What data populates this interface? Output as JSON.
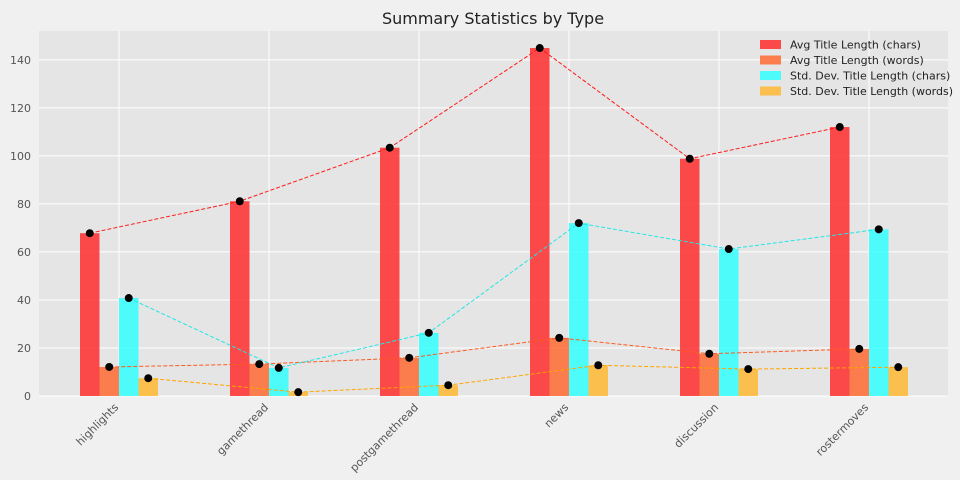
{
  "chart_data": {
    "type": "bar",
    "title": "Summary Statistics by Type",
    "xlabel": "",
    "ylabel": "",
    "categories": [
      "highlights",
      "gamethread",
      "postgamethread",
      "news",
      "discussion",
      "rostermoves"
    ],
    "ylim": [
      0,
      152
    ],
    "yticks": [
      0,
      20,
      40,
      60,
      80,
      100,
      120,
      140
    ],
    "grid": true,
    "legend_position": "top-right",
    "overlay": "dashed lines with black point markers connect each series' values",
    "series": [
      {
        "name": "Avg Title Length (chars)",
        "color": "#ff2d2d",
        "line_color": "#ff1a1a",
        "values": [
          67.8,
          81.1,
          103.4,
          144.9,
          98.8,
          112.0
        ]
      },
      {
        "name": "Avg Title Length (words)",
        "color": "#ff6a33",
        "line_color": "#ff5a1f",
        "values": [
          12.1,
          13.3,
          15.9,
          24.2,
          17.6,
          19.6
        ]
      },
      {
        "name": "Std. Dev. Title Length (chars)",
        "color": "#33ffff",
        "line_color": "#22e6e6",
        "values": [
          40.8,
          11.7,
          26.3,
          72.0,
          61.2,
          69.4
        ]
      },
      {
        "name": "Std. Dev. Title Length (words)",
        "color": "#ffb833",
        "line_color": "#ffa500",
        "values": [
          7.4,
          1.6,
          4.5,
          12.8,
          11.2,
          12.0
        ]
      }
    ]
  }
}
